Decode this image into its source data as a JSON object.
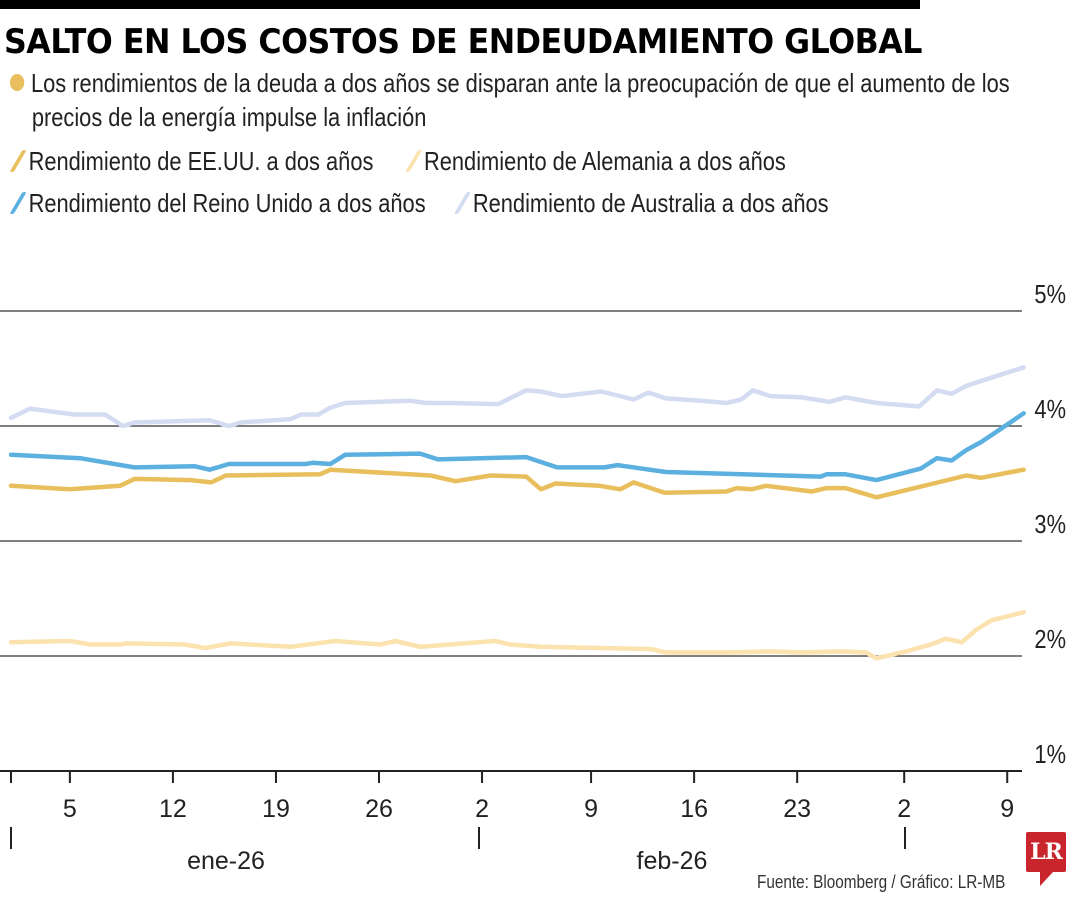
{
  "header": {
    "title": "SALTO EN LOS COSTOS DE ENDEUDAMIENTO GLOBAL",
    "subtitle_line1": "Los rendimientos de la deuda a dos años se disparan ante la preocupación de que el aumento de los",
    "subtitle_line2": "precios de la energía impulse la inflación",
    "bullet_color": "#e8bf5c"
  },
  "footer": {
    "source": "Fuente:  Bloomberg / Gráfico: LR-MB",
    "logo_text": "LR",
    "logo_color": "#c9252c"
  },
  "chart_data": {
    "type": "line",
    "title": "SALTO EN LOS COSTOS DE ENDEUDAMIENTO GLOBAL",
    "xlabel": "",
    "ylabel": "",
    "x_unit": "days since 1 Jan 2026",
    "ylim": [
      1,
      5
    ],
    "xlim": [
      0,
      68
    ],
    "grid": true,
    "legend_position": "top-left",
    "y_ticks": [
      {
        "value": 5,
        "label": "5%"
      },
      {
        "value": 4,
        "label": "4%"
      },
      {
        "value": 3,
        "label": "3%"
      },
      {
        "value": 2,
        "label": "2%"
      },
      {
        "value": 1,
        "label": "1%"
      }
    ],
    "x_ticks": [
      {
        "day": 0,
        "label": ""
      },
      {
        "day": 4,
        "label": "5"
      },
      {
        "day": 11,
        "label": "12"
      },
      {
        "day": 18,
        "label": "19"
      },
      {
        "day": 25,
        "label": "26"
      },
      {
        "day": 32,
        "label": "2"
      },
      {
        "day": 39,
        "label": "9"
      },
      {
        "day": 46,
        "label": "16"
      },
      {
        "day": 53,
        "label": "23"
      },
      {
        "day": 60,
        "label": "2"
      },
      {
        "day": 67,
        "label": "9"
      }
    ],
    "month_labels": [
      {
        "start_day": 0,
        "label": "ene-26"
      },
      {
        "start_day": 31,
        "label": "feb-26"
      },
      {
        "start_day": 59,
        "label": ""
      }
    ],
    "series": [
      {
        "name": "Rendimiento de EE.UU. a dos años",
        "color": "#e8bf5c",
        "points": [
          [
            0,
            3.48
          ],
          [
            4,
            3.45
          ],
          [
            7.4,
            3.48
          ],
          [
            8.4,
            3.54
          ],
          [
            12.2,
            3.53
          ],
          [
            13.6,
            3.51
          ],
          [
            14.6,
            3.57
          ],
          [
            21,
            3.58
          ],
          [
            21.7,
            3.62
          ],
          [
            28.5,
            3.57
          ],
          [
            30.2,
            3.52
          ],
          [
            32.6,
            3.57
          ],
          [
            35,
            3.56
          ],
          [
            36,
            3.45
          ],
          [
            37,
            3.5
          ],
          [
            40,
            3.48
          ],
          [
            41.4,
            3.45
          ],
          [
            42.3,
            3.51
          ],
          [
            44.4,
            3.42
          ],
          [
            48.6,
            3.43
          ],
          [
            49.3,
            3.46
          ],
          [
            50.3,
            3.45
          ],
          [
            51.3,
            3.48
          ],
          [
            54.4,
            3.43
          ],
          [
            55.4,
            3.46
          ],
          [
            56.7,
            3.46
          ],
          [
            58.8,
            3.38
          ],
          [
            64.9,
            3.57
          ],
          [
            65.9,
            3.55
          ],
          [
            68.8,
            3.62
          ]
        ]
      },
      {
        "name": "Rendimiento de Alemania a dos años",
        "color": "#fbe2ae",
        "points": [
          [
            0,
            2.12
          ],
          [
            4,
            2.13
          ],
          [
            5.4,
            2.1
          ],
          [
            7.4,
            2.1
          ],
          [
            7.8,
            2.11
          ],
          [
            11.8,
            2.1
          ],
          [
            13.2,
            2.07
          ],
          [
            14.9,
            2.11
          ],
          [
            19,
            2.08
          ],
          [
            22,
            2.13
          ],
          [
            25.1,
            2.1
          ],
          [
            26.1,
            2.13
          ],
          [
            27.8,
            2.08
          ],
          [
            32.9,
            2.13
          ],
          [
            33.9,
            2.1
          ],
          [
            36,
            2.08
          ],
          [
            43.5,
            2.06
          ],
          [
            44.5,
            2.03
          ],
          [
            48.9,
            2.03
          ],
          [
            51.6,
            2.04
          ],
          [
            53.7,
            2.03
          ],
          [
            56.4,
            2.04
          ],
          [
            58.1,
            2.03
          ],
          [
            58.8,
            1.98
          ],
          [
            60.8,
            2.04
          ],
          [
            62.5,
            2.1
          ],
          [
            63.5,
            2.15
          ],
          [
            64.6,
            2.12
          ],
          [
            65.6,
            2.23
          ],
          [
            66.6,
            2.31
          ],
          [
            68.8,
            2.38
          ]
        ]
      },
      {
        "name": "Rendimiento del Reino Unido a dos años",
        "color": "#5cb0e0",
        "points": [
          [
            0,
            3.75
          ],
          [
            4.7,
            3.72
          ],
          [
            8.4,
            3.64
          ],
          [
            12.5,
            3.65
          ],
          [
            13.5,
            3.62
          ],
          [
            14.8,
            3.67
          ],
          [
            20,
            3.67
          ],
          [
            20.5,
            3.68
          ],
          [
            21.7,
            3.67
          ],
          [
            22.7,
            3.75
          ],
          [
            27.8,
            3.76
          ],
          [
            29,
            3.71
          ],
          [
            35,
            3.73
          ],
          [
            37.1,
            3.64
          ],
          [
            40.3,
            3.64
          ],
          [
            41.2,
            3.66
          ],
          [
            44.5,
            3.6
          ],
          [
            55,
            3.56
          ],
          [
            55.4,
            3.58
          ],
          [
            56.7,
            3.58
          ],
          [
            58.8,
            3.53
          ],
          [
            61.8,
            3.63
          ],
          [
            62.9,
            3.72
          ],
          [
            63.9,
            3.7
          ],
          [
            64.9,
            3.79
          ],
          [
            65.9,
            3.86
          ],
          [
            67.3,
            3.98
          ],
          [
            68.8,
            4.11
          ]
        ]
      },
      {
        "name": "Rendimiento de Australia a dos años",
        "color": "#d4dcf2",
        "points": [
          [
            0,
            4.07
          ],
          [
            1.3,
            4.15
          ],
          [
            4.3,
            4.1
          ],
          [
            6.4,
            4.1
          ],
          [
            7.6,
            4.0
          ],
          [
            8.4,
            4.03
          ],
          [
            13.5,
            4.05
          ],
          [
            14.8,
            4.0
          ],
          [
            15.6,
            4.03
          ],
          [
            19,
            4.06
          ],
          [
            19.7,
            4.1
          ],
          [
            20.9,
            4.1
          ],
          [
            21.7,
            4.16
          ],
          [
            22.7,
            4.2
          ],
          [
            27.1,
            4.22
          ],
          [
            28.2,
            4.2
          ],
          [
            29.9,
            4.2
          ],
          [
            33.1,
            4.19
          ],
          [
            35,
            4.31
          ],
          [
            36,
            4.3
          ],
          [
            37.4,
            4.26
          ],
          [
            40.1,
            4.3
          ],
          [
            42.3,
            4.23
          ],
          [
            43.3,
            4.29
          ],
          [
            44.5,
            4.24
          ],
          [
            46.9,
            4.22
          ],
          [
            48.6,
            4.2
          ],
          [
            49.6,
            4.23
          ],
          [
            50.4,
            4.31
          ],
          [
            51.6,
            4.26
          ],
          [
            53.7,
            4.25
          ],
          [
            55.6,
            4.21
          ],
          [
            56.7,
            4.25
          ],
          [
            58.8,
            4.2
          ],
          [
            61.7,
            4.17
          ],
          [
            62.9,
            4.31
          ],
          [
            63.9,
            4.28
          ],
          [
            64.9,
            4.35
          ],
          [
            66.6,
            4.42
          ],
          [
            68.8,
            4.51
          ]
        ]
      }
    ]
  }
}
